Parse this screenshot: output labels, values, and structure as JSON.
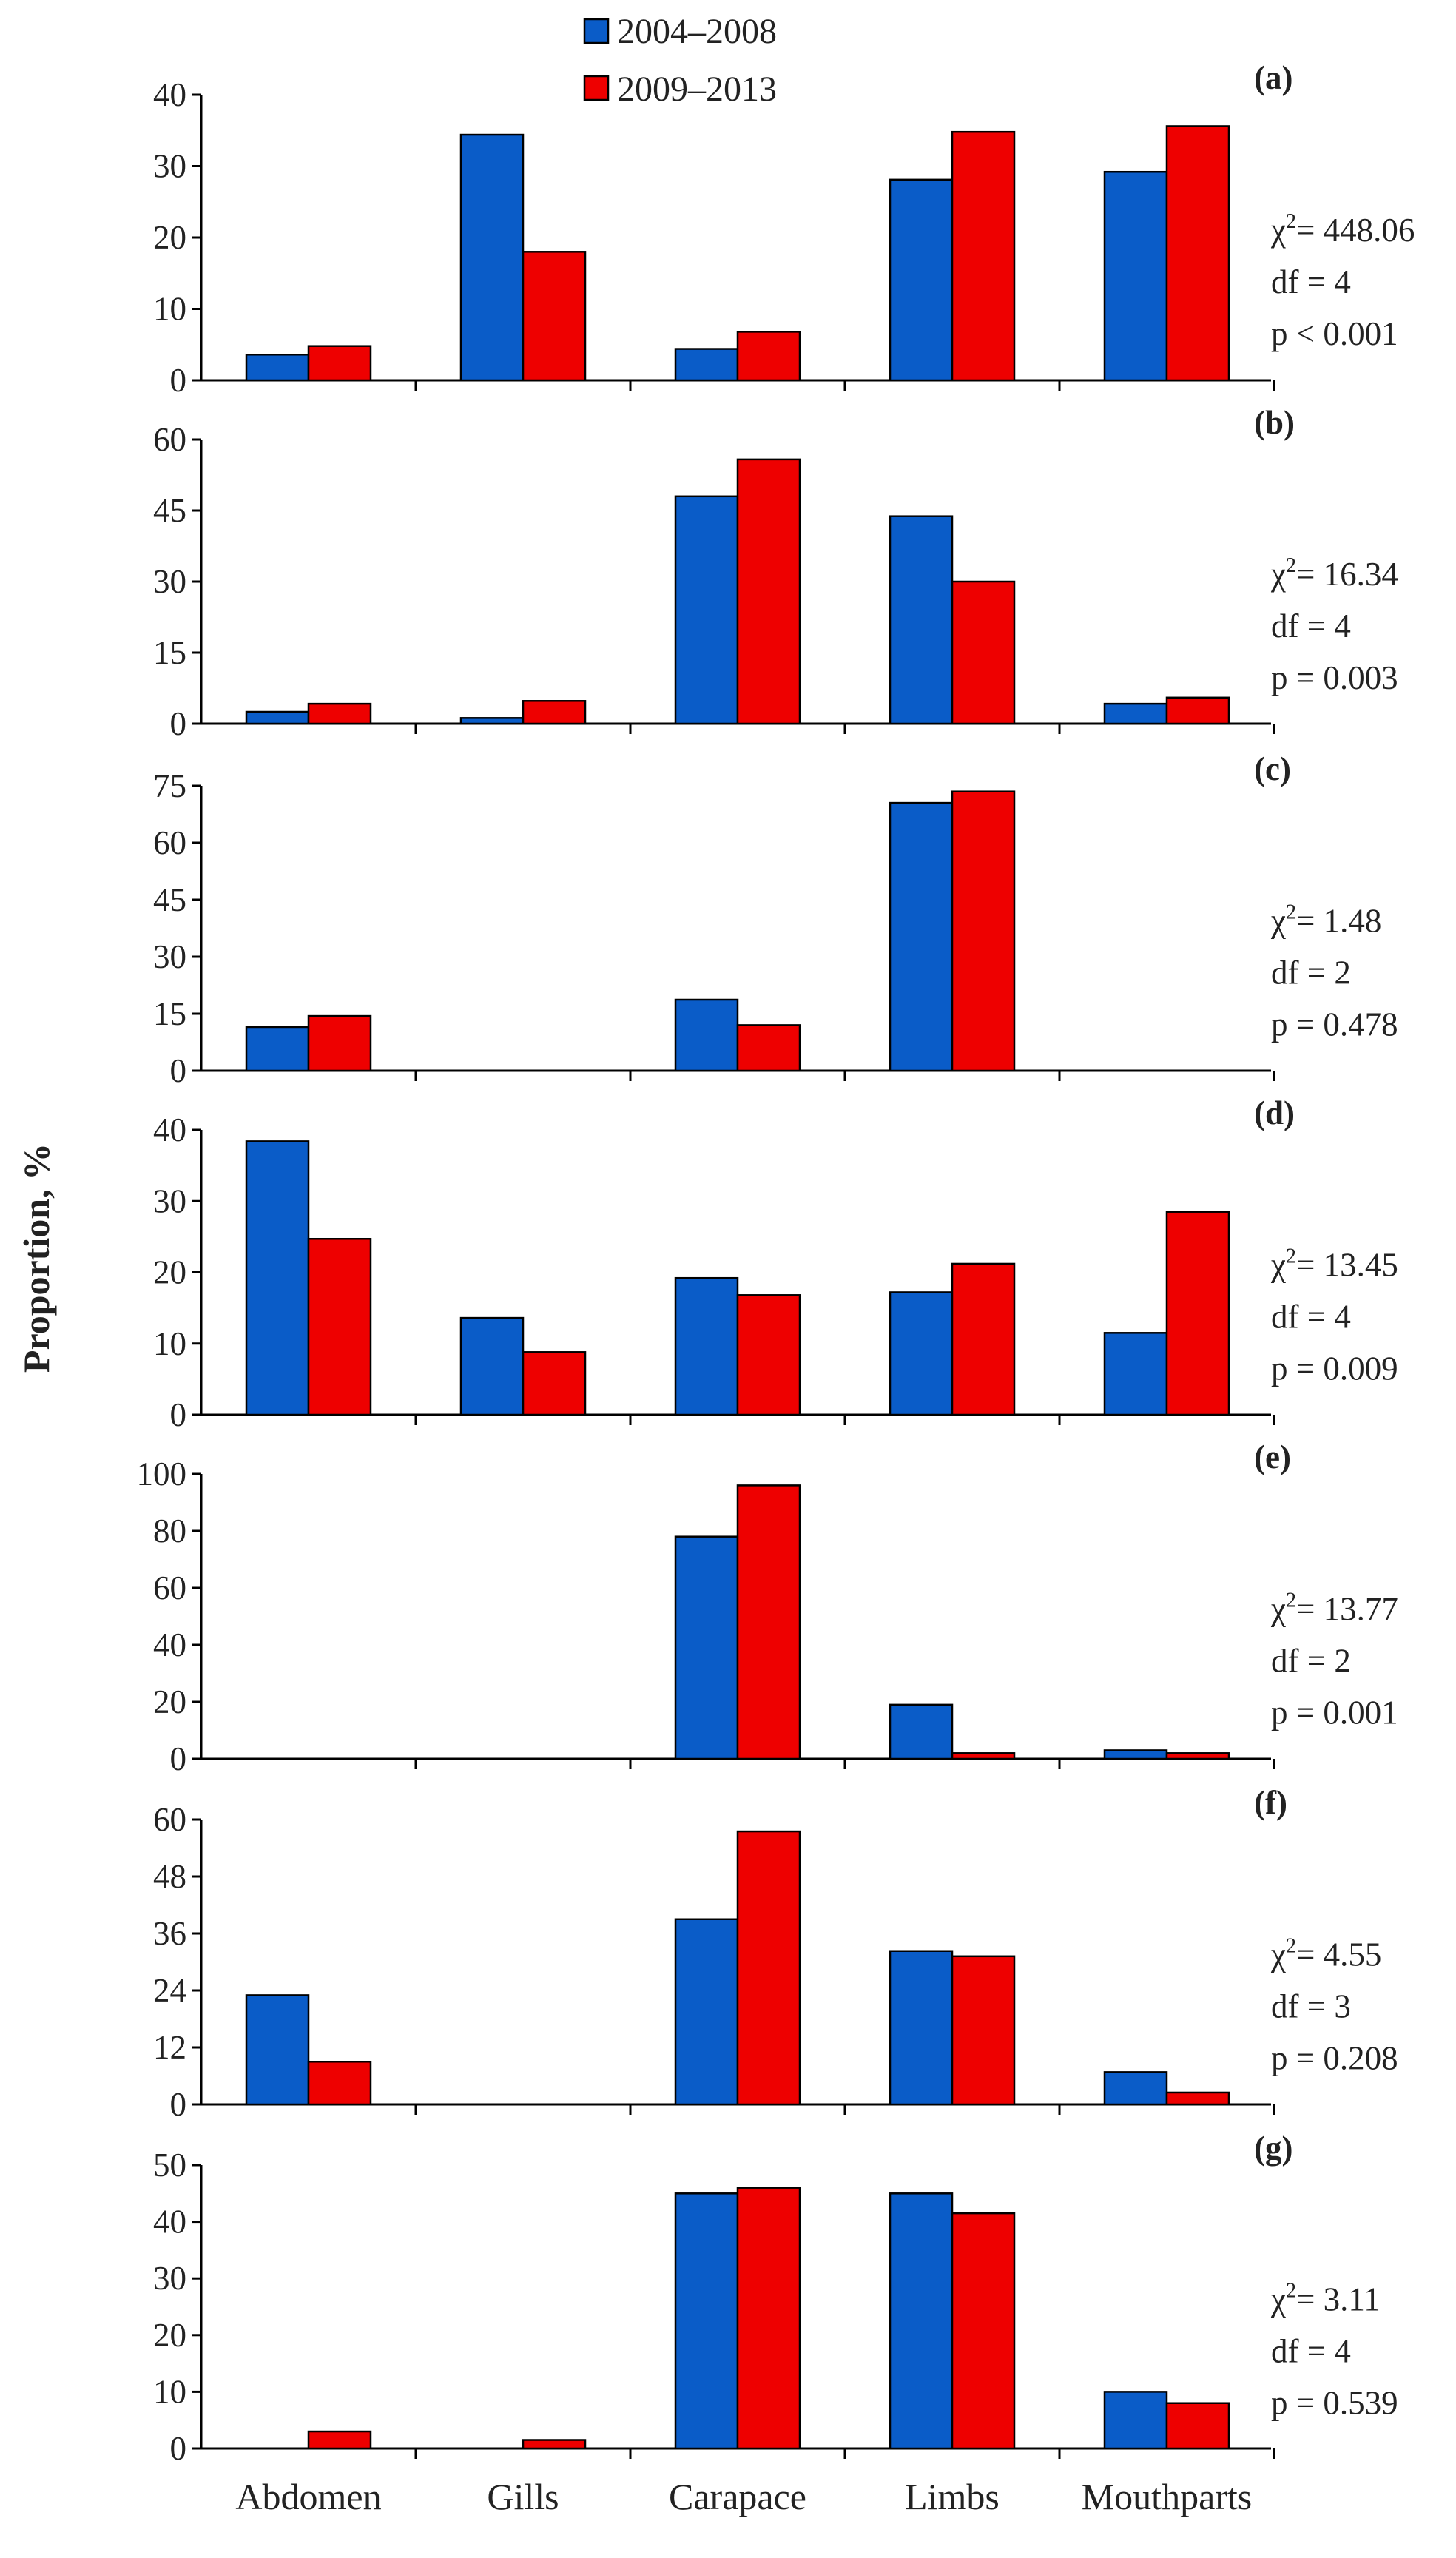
{
  "chart_data": {
    "type": "bar",
    "ylabel": "Proportion, %",
    "categories": [
      "Abdomen",
      "Gills",
      "Carapace",
      "Limbs",
      "Mouthparts"
    ],
    "legend": {
      "position": "top-center",
      "entries": [
        {
          "name": "2004–2008",
          "color": "#0a5cc8"
        },
        {
          "name": "2009–2013",
          "color": "#ee0000"
        }
      ]
    },
    "panels": [
      {
        "label": "(a)",
        "ylim": [
          0,
          40
        ],
        "yticks": [
          "0",
          "10",
          "20",
          "30",
          "40"
        ],
        "series": [
          {
            "name": "2004–2008",
            "values": [
              3.6,
              34.4,
              4.4,
              28.1,
              29.2
            ]
          },
          {
            "name": "2009–2013",
            "values": [
              4.8,
              18.0,
              6.8,
              34.8,
              35.6
            ]
          }
        ],
        "stats": {
          "chi2": "= 448.06",
          "df": "df = 4",
          "p": "p < 0.001"
        }
      },
      {
        "label": "(b)",
        "ylim": [
          0,
          60
        ],
        "yticks": [
          "0",
          "15",
          "30",
          "45",
          "60"
        ],
        "series": [
          {
            "name": "2004–2008",
            "values": [
              2.5,
              1.2,
              48.0,
              43.8,
              4.2
            ]
          },
          {
            "name": "2009–2013",
            "values": [
              4.2,
              4.8,
              55.8,
              30.0,
              5.5
            ]
          }
        ],
        "stats": {
          "chi2": "= 16.34",
          "df": "df = 4",
          "p": "p = 0.003"
        }
      },
      {
        "label": "(c)",
        "ylim": [
          0,
          75
        ],
        "yticks": [
          "0",
          "15",
          "30",
          "45",
          "60",
          "75"
        ],
        "series": [
          {
            "name": "2004–2008",
            "values": [
              11.5,
              0,
              18.7,
              70.5,
              0
            ]
          },
          {
            "name": "2009–2013",
            "values": [
              14.4,
              0,
              12.0,
              73.5,
              0
            ]
          }
        ],
        "stats": {
          "chi2": "= 1.48",
          "df": "df = 2",
          "p": "p = 0.478"
        }
      },
      {
        "label": "(d)",
        "ylim": [
          0,
          40
        ],
        "yticks": [
          "0",
          "10",
          "20",
          "30",
          "40"
        ],
        "series": [
          {
            "name": "2004–2008",
            "values": [
              38.4,
              13.6,
              19.2,
              17.2,
              11.5
            ]
          },
          {
            "name": "2009–2013",
            "values": [
              24.7,
              8.8,
              16.8,
              21.2,
              28.5
            ]
          }
        ],
        "stats": {
          "chi2": "= 13.45",
          "df": "df = 4",
          "p": "p = 0.009"
        }
      },
      {
        "label": "(e)",
        "ylim": [
          0,
          100
        ],
        "yticks": [
          "0",
          "20",
          "40",
          "60",
          "80",
          "100"
        ],
        "series": [
          {
            "name": "2004–2008",
            "values": [
              0,
              0,
              78.0,
              19.0,
              3.0
            ]
          },
          {
            "name": "2009–2013",
            "values": [
              0,
              0,
              96.0,
              2.0,
              2.0
            ]
          }
        ],
        "stats": {
          "chi2": "= 13.77",
          "df": "df = 2",
          "p": "p = 0.001"
        }
      },
      {
        "label": "(f)",
        "ylim": [
          0,
          60
        ],
        "yticks": [
          "0",
          "12",
          "24",
          "36",
          "48",
          "60"
        ],
        "series": [
          {
            "name": "2004–2008",
            "values": [
              23.0,
              0,
              39.0,
              32.3,
              6.8
            ]
          },
          {
            "name": "2009–2013",
            "values": [
              9.0,
              0,
              57.5,
              31.2,
              2.5
            ]
          }
        ],
        "stats": {
          "chi2": "= 4.55",
          "df": "df = 3",
          "p": "p = 0.208"
        }
      },
      {
        "label": "(g)",
        "ylim": [
          0,
          50
        ],
        "yticks": [
          "0",
          "10",
          "20",
          "30",
          "40",
          "50"
        ],
        "series": [
          {
            "name": "2004–2008",
            "values": [
              0,
              0,
              45.0,
              45.0,
              10.0
            ]
          },
          {
            "name": "2009–2013",
            "values": [
              3.0,
              1.5,
              46.0,
              41.5,
              8.0
            ]
          }
        ],
        "stats": {
          "chi2": "= 3.11",
          "df": "df = 4",
          "p": "p = 0.539"
        }
      }
    ]
  }
}
